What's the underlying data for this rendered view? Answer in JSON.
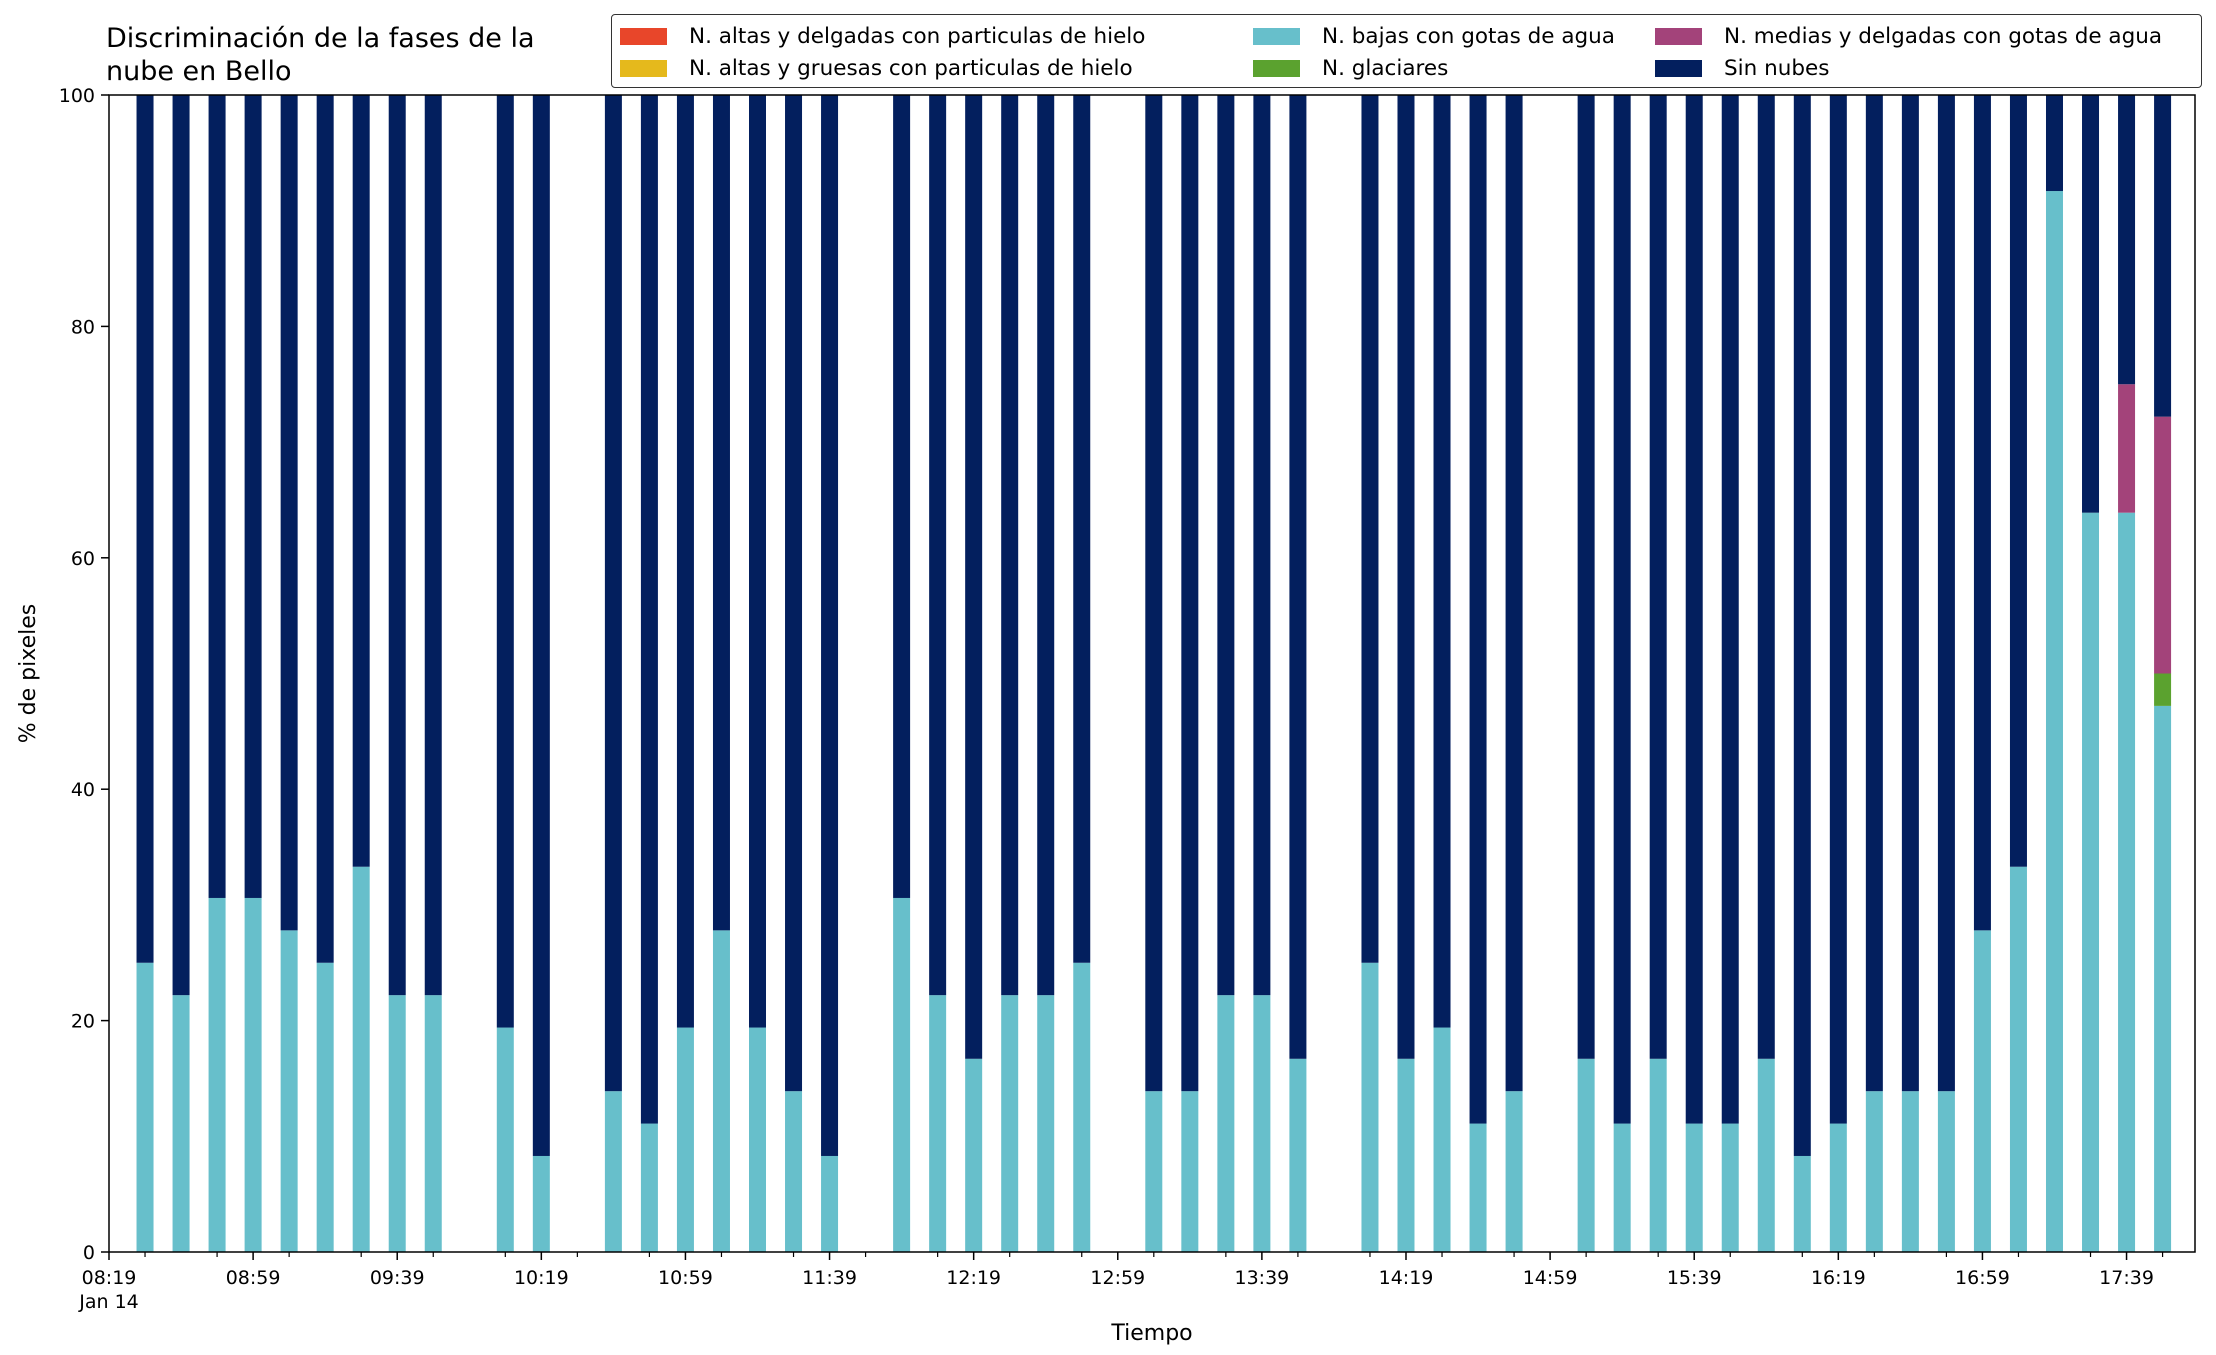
{
  "chart_data": {
    "type": "bar",
    "stacked": true,
    "title": "Discriminación de la fases de la\nnube en Bello",
    "xlabel": "Tiempo",
    "ylabel": "% de pixeles",
    "ylim": [
      0,
      100
    ],
    "yticks": [
      0,
      20,
      40,
      60,
      80,
      100
    ],
    "grid": false,
    "legend_position": "top-right",
    "xtick_minutes": [
      499,
      539,
      579,
      619,
      659,
      699,
      739,
      779,
      819,
      859,
      899,
      939,
      979,
      1019,
      1059
    ],
    "xtick_labels": [
      "08:19",
      "08:59",
      "09:39",
      "10:19",
      "10:59",
      "11:39",
      "12:19",
      "12:59",
      "13:39",
      "14:19",
      "14:59",
      "15:39",
      "16:19",
      "16:59",
      "17:39"
    ],
    "xtick_date_label": "Jan 14",
    "x_minutes_range": [
      499,
      1078
    ],
    "x": [
      "08:29",
      "08:39",
      "08:49",
      "08:59",
      "09:09",
      "09:19",
      "09:29",
      "09:39",
      "09:49",
      "10:09",
      "10:19",
      "10:39",
      "10:49",
      "10:59",
      "11:09",
      "11:19",
      "11:29",
      "11:39",
      "11:59",
      "12:09",
      "12:19",
      "12:29",
      "12:39",
      "12:49",
      "13:09",
      "13:19",
      "13:29",
      "13:39",
      "13:49",
      "14:09",
      "14:19",
      "14:29",
      "14:39",
      "14:49",
      "15:09",
      "15:19",
      "15:29",
      "15:39",
      "15:49",
      "15:59",
      "16:09",
      "16:19",
      "16:29",
      "16:39",
      "16:49",
      "16:59",
      "17:09",
      "17:19",
      "17:29",
      "17:39",
      "17:49"
    ],
    "series": [
      {
        "name": "N. altas y delgadas con particulas de hielo",
        "color": "#e8462a",
        "values": [
          0,
          0,
          0,
          0,
          0,
          0,
          0,
          0,
          0,
          0,
          0,
          0,
          0,
          0,
          0,
          0,
          0,
          0,
          0,
          0,
          0,
          0,
          0,
          0,
          0,
          0,
          0,
          0,
          0,
          0,
          0,
          0,
          0,
          0,
          0,
          0,
          0,
          0,
          0,
          0,
          0,
          0,
          0,
          0,
          0,
          0,
          0,
          0,
          0,
          0,
          0
        ]
      },
      {
        "name": "N. altas y gruesas con particulas de hielo",
        "color": "#e5b91c",
        "values": [
          0,
          0,
          0,
          0,
          0,
          0,
          0,
          0,
          0,
          0,
          0,
          0,
          0,
          0,
          0,
          0,
          0,
          0,
          0,
          0,
          0,
          0,
          0,
          0,
          0,
          0,
          0,
          0,
          0,
          0,
          0,
          0,
          0,
          0,
          0,
          0,
          0,
          0,
          0,
          0,
          0,
          0,
          0,
          0,
          0,
          0,
          0,
          0,
          0,
          0,
          0
        ]
      },
      {
        "name": "N. bajas con gotas de agua",
        "color": "#67bfcb",
        "values": [
          25,
          22.2,
          30.6,
          30.6,
          27.8,
          25,
          33.3,
          22.2,
          22.2,
          19.4,
          8.3,
          13.9,
          11.1,
          19.4,
          27.8,
          19.4,
          13.9,
          8.3,
          30.6,
          22.2,
          16.7,
          22.2,
          22.2,
          25,
          13.9,
          13.9,
          22.2,
          22.2,
          16.7,
          25,
          16.7,
          19.4,
          11.1,
          13.9,
          16.7,
          11.1,
          16.7,
          11.1,
          11.1,
          16.7,
          8.3,
          11.1,
          13.9,
          13.9,
          13.9,
          27.8,
          33.3,
          91.7,
          63.9,
          63.9,
          47.2
        ]
      },
      {
        "name": "N. glaciares",
        "color": "#5ba22f",
        "values": [
          0,
          0,
          0,
          0,
          0,
          0,
          0,
          0,
          0,
          0,
          0,
          0,
          0,
          0,
          0,
          0,
          0,
          0,
          0,
          0,
          0,
          0,
          0,
          0,
          0,
          0,
          0,
          0,
          0,
          0,
          0,
          0,
          0,
          0,
          0,
          0,
          0,
          0,
          0,
          0,
          0,
          0,
          0,
          0,
          0,
          0,
          0,
          0,
          0,
          0,
          2.8
        ]
      },
      {
        "name": "N. medias y delgadas con gotas de agua",
        "color": "#a3437a",
        "values": [
          0,
          0,
          0,
          0,
          0,
          0,
          0,
          0,
          0,
          0,
          0,
          0,
          0,
          0,
          0,
          0,
          0,
          0,
          0,
          0,
          0,
          0,
          0,
          0,
          0,
          0,
          0,
          0,
          0,
          0,
          0,
          0,
          0,
          0,
          0,
          0,
          0,
          0,
          0,
          0,
          0,
          0,
          0,
          0,
          0,
          0,
          0,
          0,
          0,
          11.1,
          22.2
        ]
      },
      {
        "name": "Sin nubes",
        "color": "#031f5e",
        "values": [
          75,
          77.8,
          69.4,
          69.4,
          72.2,
          75,
          66.7,
          77.8,
          77.8,
          80.6,
          91.7,
          86.1,
          88.9,
          80.6,
          72.2,
          80.6,
          86.1,
          91.7,
          69.4,
          77.8,
          83.3,
          77.8,
          77.8,
          75,
          86.1,
          86.1,
          77.8,
          77.8,
          83.3,
          75,
          83.3,
          80.6,
          88.9,
          86.1,
          83.3,
          88.9,
          83.3,
          88.9,
          88.9,
          83.3,
          91.7,
          88.9,
          86.1,
          86.1,
          86.1,
          72.2,
          66.7,
          8.3,
          36.1,
          25,
          27.8
        ]
      }
    ]
  }
}
